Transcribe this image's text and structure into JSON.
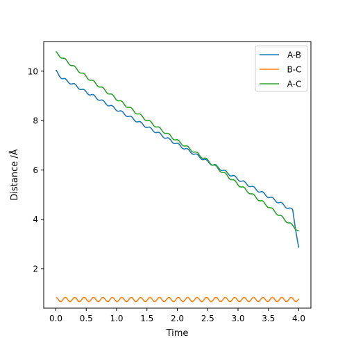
{
  "chart_data": {
    "type": "line",
    "title": "",
    "xlabel": "Time",
    "ylabel": "Distance /Å",
    "xlim": [
      -0.2,
      4.2
    ],
    "ylim": [
      0.4,
      11.2
    ],
    "xticks": [
      0.0,
      0.5,
      1.0,
      1.5,
      2.0,
      2.5,
      3.0,
      3.5,
      4.0
    ],
    "xtick_labels": [
      "0.0",
      "0.5",
      "1.0",
      "1.5",
      "2.0",
      "2.5",
      "3.0",
      "3.5",
      "4.0"
    ],
    "yticks": [
      2,
      4,
      6,
      8,
      10
    ],
    "ytick_labels": [
      "2",
      "4",
      "6",
      "8",
      "10"
    ],
    "grid": false,
    "legend_position": "top-right",
    "series": [
      {
        "name": "A-B",
        "color": "#1f77b4",
        "x": [
          0.0,
          0.1,
          0.2,
          0.3,
          0.4,
          0.5,
          0.6,
          0.7,
          0.8,
          0.9,
          1.0,
          1.1,
          1.2,
          1.3,
          1.4,
          1.5,
          1.6,
          1.7,
          1.8,
          1.9,
          2.0,
          2.1,
          2.2,
          2.3,
          2.4,
          2.5,
          2.6,
          2.7,
          2.8,
          2.9,
          3.0,
          3.1,
          3.2,
          3.3,
          3.4,
          3.5,
          3.6,
          3.7,
          3.8,
          3.9,
          4.0
        ],
        "y": [
          10.0,
          9.72,
          9.58,
          9.45,
          9.3,
          9.15,
          9.02,
          8.88,
          8.73,
          8.59,
          8.45,
          8.31,
          8.17,
          8.03,
          7.89,
          7.74,
          7.61,
          7.47,
          7.32,
          7.18,
          7.04,
          6.9,
          6.76,
          6.62,
          6.48,
          6.33,
          6.2,
          6.06,
          5.91,
          5.77,
          5.63,
          5.49,
          5.35,
          5.21,
          5.07,
          4.92,
          4.79,
          4.65,
          4.5,
          4.36,
          2.83
        ]
      },
      {
        "name": "B-C",
        "color": "#ff7f0e",
        "x": [
          0.0,
          0.5,
          1.0,
          1.5,
          2.0,
          2.5,
          3.0,
          3.5,
          4.0
        ],
        "y": [
          0.75,
          0.75,
          0.75,
          0.75,
          0.75,
          0.75,
          0.75,
          0.75,
          0.75
        ]
      },
      {
        "name": "A-C",
        "color": "#2ca02c",
        "x": [
          0.0,
          0.5,
          1.0,
          1.5,
          2.0,
          2.5,
          3.0,
          3.5,
          4.0
        ],
        "y": [
          10.75,
          9.78,
          8.88,
          8.02,
          7.18,
          6.38,
          5.42,
          4.52,
          3.53
        ]
      }
    ]
  }
}
